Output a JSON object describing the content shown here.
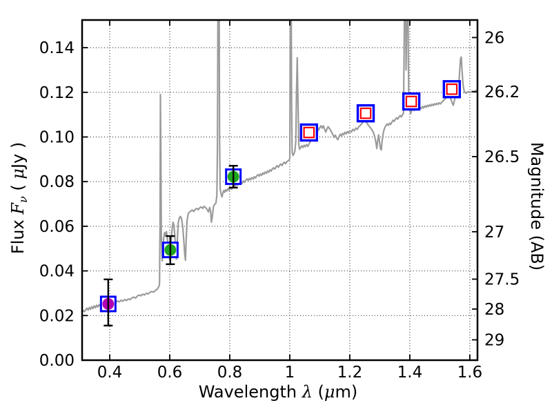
{
  "chart_data": {
    "type": "line+scatter",
    "title": "",
    "xlabel_parts": [
      {
        "t": "Wavelength  ",
        "f": "sans"
      },
      {
        "t": "λ",
        "f": "math"
      },
      {
        "t": " (",
        "f": "sans"
      },
      {
        "t": "μ",
        "f": "math"
      },
      {
        "t": "m)",
        "f": "sans"
      }
    ],
    "ylabel_parts": [
      {
        "t": "Flux  ",
        "f": "sans"
      },
      {
        "t": "F",
        "f": "math"
      },
      {
        "t": "ν",
        "f": "mathsub"
      },
      {
        "t": "  ( ",
        "f": "sans"
      },
      {
        "t": "μ",
        "f": "math"
      },
      {
        "t": "Jy )",
        "f": "sans"
      }
    ],
    "ylabel_right": "Magnitude (AB)",
    "xlim": [
      0.308,
      1.6255
    ],
    "ylim": [
      0,
      0.1524
    ],
    "x_ticks": [
      [
        0.4,
        "0.4"
      ],
      [
        0.6,
        "0.6"
      ],
      [
        0.8,
        "0.8"
      ],
      [
        1.0,
        "1"
      ],
      [
        1.2,
        "1.2"
      ],
      [
        1.4,
        "1.4"
      ],
      [
        1.6,
        "1.6"
      ]
    ],
    "y_ticks": [
      [
        0.0,
        "0.00"
      ],
      [
        0.02,
        "0.02"
      ],
      [
        0.04,
        "0.04"
      ],
      [
        0.06,
        "0.06"
      ],
      [
        0.08,
        "0.08"
      ],
      [
        0.1,
        "0.10"
      ],
      [
        0.12,
        "0.12"
      ],
      [
        0.14,
        "0.14"
      ]
    ],
    "right_ticks": [
      [
        26,
        "26"
      ],
      [
        26.2,
        "26.2"
      ],
      [
        26.5,
        "26.5"
      ],
      [
        27,
        "27"
      ],
      [
        27.5,
        "27.5"
      ],
      [
        28,
        "28"
      ],
      [
        29,
        "29"
      ]
    ],
    "ab_zeropoint": 23.9,
    "grid": true,
    "colors": {
      "spectrum": "#9b9b9b",
      "square_edge": "#0000ff",
      "inner_square_edge": "#ff0000",
      "point_magenta": "#b400b4",
      "point_green": "#1ea41e",
      "error_bar": "#000000",
      "frame": "#000000"
    },
    "photometry": [
      {
        "x": 0.395,
        "y": 0.0252,
        "err_plus": 0.011,
        "err_minus": 0.0097,
        "marker": "filled-circle-in-square",
        "fill": "#b400b4"
      },
      {
        "x": 0.602,
        "y": 0.0494,
        "err_plus": 0.0062,
        "err_minus": 0.0064,
        "marker": "filled-circle-in-square",
        "fill": "#1ea41e"
      },
      {
        "x": 0.812,
        "y": 0.0822,
        "err_plus": 0.0049,
        "err_minus": 0.0049,
        "marker": "filled-circle-in-square",
        "fill": "#1ea41e"
      },
      {
        "x": 1.064,
        "y": 0.102,
        "err_plus": 0.0025,
        "err_minus": 0.0025,
        "marker": "open-double-square"
      },
      {
        "x": 1.253,
        "y": 0.1106,
        "err_plus": 0.0025,
        "err_minus": 0.0025,
        "marker": "open-double-square"
      },
      {
        "x": 1.405,
        "y": 0.1159,
        "err_plus": 0.0025,
        "err_minus": 0.0025,
        "marker": "open-double-square"
      },
      {
        "x": 1.54,
        "y": 0.1214,
        "err_plus": 0.0025,
        "err_minus": 0.0025,
        "marker": "open-double-square"
      }
    ],
    "spectrum": [
      [
        0.308,
        0.0215
      ],
      [
        0.312,
        0.0222
      ],
      [
        0.316,
        0.0218
      ],
      [
        0.32,
        0.0226
      ],
      [
        0.324,
        0.0233
      ],
      [
        0.328,
        0.0224
      ],
      [
        0.332,
        0.0236
      ],
      [
        0.336,
        0.0228
      ],
      [
        0.34,
        0.024
      ],
      [
        0.344,
        0.0231
      ],
      [
        0.348,
        0.0243
      ],
      [
        0.352,
        0.0235
      ],
      [
        0.356,
        0.0246
      ],
      [
        0.36,
        0.0238
      ],
      [
        0.364,
        0.0249
      ],
      [
        0.368,
        0.0242
      ],
      [
        0.372,
        0.0252
      ],
      [
        0.376,
        0.0245
      ],
      [
        0.38,
        0.0254
      ],
      [
        0.384,
        0.0248
      ],
      [
        0.388,
        0.0256
      ],
      [
        0.392,
        0.025
      ],
      [
        0.396,
        0.0258
      ],
      [
        0.4,
        0.0252
      ],
      [
        0.405,
        0.026
      ],
      [
        0.41,
        0.0255
      ],
      [
        0.415,
        0.0263
      ],
      [
        0.42,
        0.0258
      ],
      [
        0.426,
        0.0266
      ],
      [
        0.432,
        0.0261
      ],
      [
        0.438,
        0.0269
      ],
      [
        0.444,
        0.0264
      ],
      [
        0.45,
        0.0272
      ],
      [
        0.456,
        0.0267
      ],
      [
        0.462,
        0.0275
      ],
      [
        0.468,
        0.0271
      ],
      [
        0.474,
        0.0279
      ],
      [
        0.48,
        0.0283
      ],
      [
        0.486,
        0.0278
      ],
      [
        0.492,
        0.0287
      ],
      [
        0.498,
        0.0292
      ],
      [
        0.504,
        0.0288
      ],
      [
        0.51,
        0.0296
      ],
      [
        0.516,
        0.0292
      ],
      [
        0.522,
        0.03
      ],
      [
        0.528,
        0.0297
      ],
      [
        0.534,
        0.0304
      ],
      [
        0.54,
        0.0308
      ],
      [
        0.546,
        0.0305
      ],
      [
        0.552,
        0.0312
      ],
      [
        0.558,
        0.0318
      ],
      [
        0.562,
        0.0326
      ],
      [
        0.5645,
        0.0332
      ],
      [
        0.566,
        0.0345
      ],
      [
        0.5675,
        0.06
      ],
      [
        0.569,
        0.119
      ],
      [
        0.5705,
        0.09
      ],
      [
        0.572,
        0.056
      ],
      [
        0.5735,
        0.048
      ],
      [
        0.575,
        0.0445
      ],
      [
        0.577,
        0.05
      ],
      [
        0.58,
        0.0548
      ],
      [
        0.583,
        0.0572
      ],
      [
        0.586,
        0.0556
      ],
      [
        0.589,
        0.0576
      ],
      [
        0.592,
        0.0548
      ],
      [
        0.595,
        0.0505
      ],
      [
        0.5975,
        0.0465
      ],
      [
        0.6,
        0.0448
      ],
      [
        0.6025,
        0.048
      ],
      [
        0.605,
        0.054
      ],
      [
        0.608,
        0.0588
      ],
      [
        0.611,
        0.0618
      ],
      [
        0.614,
        0.0605
      ],
      [
        0.617,
        0.0558
      ],
      [
        0.6195,
        0.0482
      ],
      [
        0.622,
        0.0452
      ],
      [
        0.625,
        0.0528
      ],
      [
        0.628,
        0.0614
      ],
      [
        0.632,
        0.0638
      ],
      [
        0.636,
        0.0644
      ],
      [
        0.64,
        0.063
      ],
      [
        0.644,
        0.0588
      ],
      [
        0.647,
        0.0535
      ],
      [
        0.65,
        0.0475
      ],
      [
        0.6525,
        0.0448
      ],
      [
        0.655,
        0.0545
      ],
      [
        0.658,
        0.0628
      ],
      [
        0.662,
        0.0658
      ],
      [
        0.666,
        0.0664
      ],
      [
        0.67,
        0.0668
      ],
      [
        0.675,
        0.0673
      ],
      [
        0.68,
        0.0666
      ],
      [
        0.685,
        0.0676
      ],
      [
        0.69,
        0.068
      ],
      [
        0.695,
        0.0674
      ],
      [
        0.7,
        0.0683
      ],
      [
        0.705,
        0.0687
      ],
      [
        0.71,
        0.068
      ],
      [
        0.715,
        0.0689
      ],
      [
        0.72,
        0.0683
      ],
      [
        0.725,
        0.0674
      ],
      [
        0.729,
        0.0664
      ],
      [
        0.733,
        0.0684
      ],
      [
        0.736,
        0.0671
      ],
      [
        0.739,
        0.0618
      ],
      [
        0.742,
        0.0645
      ],
      [
        0.746,
        0.069
      ],
      [
        0.75,
        0.0698
      ],
      [
        0.754,
        0.0704
      ],
      [
        0.757,
        0.074
      ],
      [
        0.759,
        0.095
      ],
      [
        0.761,
        0.17
      ],
      [
        0.7645,
        0.17
      ],
      [
        0.766,
        0.1
      ],
      [
        0.768,
        0.0768
      ],
      [
        0.771,
        0.0745
      ],
      [
        0.774,
        0.0731
      ],
      [
        0.777,
        0.0749
      ],
      [
        0.78,
        0.076
      ],
      [
        0.783,
        0.0752
      ],
      [
        0.786,
        0.0764
      ],
      [
        0.79,
        0.0757
      ],
      [
        0.794,
        0.0769
      ],
      [
        0.798,
        0.0761
      ],
      [
        0.802,
        0.0772
      ],
      [
        0.806,
        0.0766
      ],
      [
        0.81,
        0.0778
      ],
      [
        0.814,
        0.0786
      ],
      [
        0.818,
        0.0779
      ],
      [
        0.822,
        0.079
      ],
      [
        0.826,
        0.0784
      ],
      [
        0.83,
        0.0795
      ],
      [
        0.834,
        0.0789
      ],
      [
        0.838,
        0.0799
      ],
      [
        0.842,
        0.0793
      ],
      [
        0.846,
        0.0803
      ],
      [
        0.85,
        0.0797
      ],
      [
        0.854,
        0.0807
      ],
      [
        0.858,
        0.0812
      ],
      [
        0.862,
        0.0805
      ],
      [
        0.866,
        0.0815
      ],
      [
        0.87,
        0.0809
      ],
      [
        0.874,
        0.0818
      ],
      [
        0.878,
        0.0812
      ],
      [
        0.882,
        0.0822
      ],
      [
        0.886,
        0.0816
      ],
      [
        0.89,
        0.0826
      ],
      [
        0.894,
        0.0831
      ],
      [
        0.898,
        0.0824
      ],
      [
        0.902,
        0.0834
      ],
      [
        0.906,
        0.0828
      ],
      [
        0.91,
        0.0839
      ],
      [
        0.914,
        0.0833
      ],
      [
        0.918,
        0.0843
      ],
      [
        0.922,
        0.0837
      ],
      [
        0.926,
        0.0848
      ],
      [
        0.93,
        0.0842
      ],
      [
        0.934,
        0.0853
      ],
      [
        0.938,
        0.0847
      ],
      [
        0.942,
        0.0857
      ],
      [
        0.946,
        0.0862
      ],
      [
        0.95,
        0.0856
      ],
      [
        0.954,
        0.0866
      ],
      [
        0.958,
        0.0871
      ],
      [
        0.962,
        0.0864
      ],
      [
        0.966,
        0.0874
      ],
      [
        0.97,
        0.0879
      ],
      [
        0.974,
        0.0872
      ],
      [
        0.978,
        0.0882
      ],
      [
        0.982,
        0.0887
      ],
      [
        0.986,
        0.088
      ],
      [
        0.99,
        0.0889
      ],
      [
        0.994,
        0.0893
      ],
      [
        0.998,
        0.0897
      ],
      [
        1.0,
        0.0905
      ],
      [
        1.0015,
        0.14
      ],
      [
        1.003,
        0.17
      ],
      [
        1.0045,
        0.17
      ],
      [
        1.006,
        0.115
      ],
      [
        1.008,
        0.093
      ],
      [
        1.011,
        0.0917
      ],
      [
        1.014,
        0.0925
      ],
      [
        1.017,
        0.0938
      ],
      [
        1.02,
        0.098
      ],
      [
        1.0225,
        0.12
      ],
      [
        1.025,
        0.1355
      ],
      [
        1.0275,
        0.115
      ],
      [
        1.03,
        0.0965
      ],
      [
        1.033,
        0.0945
      ],
      [
        1.036,
        0.0952
      ],
      [
        1.04,
        0.096
      ],
      [
        1.044,
        0.0953
      ],
      [
        1.048,
        0.0963
      ],
      [
        1.052,
        0.0956
      ],
      [
        1.056,
        0.0966
      ],
      [
        1.06,
        0.0958
      ],
      [
        1.064,
        0.0968
      ],
      [
        1.068,
        0.0978
      ],
      [
        1.072,
        0.0995
      ],
      [
        1.076,
        0.1015
      ],
      [
        1.08,
        0.1035
      ],
      [
        1.084,
        0.105
      ],
      [
        1.088,
        0.1056
      ],
      [
        1.092,
        0.1044
      ],
      [
        1.096,
        0.103
      ],
      [
        1.1,
        0.1042
      ],
      [
        1.104,
        0.105
      ],
      [
        1.108,
        0.104
      ],
      [
        1.112,
        0.105
      ],
      [
        1.116,
        0.1035
      ],
      [
        1.12,
        0.1022
      ],
      [
        1.124,
        0.1036
      ],
      [
        1.128,
        0.1046
      ],
      [
        1.132,
        0.1038
      ],
      [
        1.136,
        0.103
      ],
      [
        1.14,
        0.102
      ],
      [
        1.144,
        0.101
      ],
      [
        1.148,
        0.0998
      ],
      [
        1.152,
        0.1008
      ],
      [
        1.156,
        0.0996
      ],
      [
        1.16,
        0.0988
      ],
      [
        1.164,
        0.1
      ],
      [
        1.168,
        0.1012
      ],
      [
        1.172,
        0.1005
      ],
      [
        1.176,
        0.1016
      ],
      [
        1.18,
        0.101
      ],
      [
        1.184,
        0.1021
      ],
      [
        1.188,
        0.1014
      ],
      [
        1.192,
        0.1024
      ],
      [
        1.196,
        0.1018
      ],
      [
        1.2,
        0.1028
      ],
      [
        1.205,
        0.1022
      ],
      [
        1.21,
        0.1034
      ],
      [
        1.215,
        0.1028
      ],
      [
        1.22,
        0.104
      ],
      [
        1.225,
        0.1034
      ],
      [
        1.23,
        0.1046
      ],
      [
        1.235,
        0.1052
      ],
      [
        1.24,
        0.106
      ],
      [
        1.245,
        0.1068
      ],
      [
        1.25,
        0.1075
      ],
      [
        1.255,
        0.1066
      ],
      [
        1.26,
        0.1056
      ],
      [
        1.266,
        0.1046
      ],
      [
        1.272,
        0.1036
      ],
      [
        1.278,
        0.1022
      ],
      [
        1.283,
        0.1002
      ],
      [
        1.287,
        0.0975
      ],
      [
        1.29,
        0.0948
      ],
      [
        1.293,
        0.0985
      ],
      [
        1.296,
        0.101
      ],
      [
        1.299,
        0.098
      ],
      [
        1.302,
        0.0948
      ],
      [
        1.305,
        0.0942
      ],
      [
        1.308,
        0.0985
      ],
      [
        1.312,
        0.1022
      ],
      [
        1.316,
        0.104
      ],
      [
        1.32,
        0.105
      ],
      [
        1.324,
        0.1058
      ],
      [
        1.328,
        0.1052
      ],
      [
        1.332,
        0.1062
      ],
      [
        1.336,
        0.1056
      ],
      [
        1.34,
        0.1066
      ],
      [
        1.344,
        0.1075
      ],
      [
        1.348,
        0.107
      ],
      [
        1.352,
        0.108
      ],
      [
        1.356,
        0.1086
      ],
      [
        1.36,
        0.108
      ],
      [
        1.364,
        0.109
      ],
      [
        1.368,
        0.1096
      ],
      [
        1.372,
        0.109
      ],
      [
        1.376,
        0.11
      ],
      [
        1.379,
        0.1108
      ],
      [
        1.381,
        0.14
      ],
      [
        1.383,
        0.17
      ],
      [
        1.386,
        0.17
      ],
      [
        1.3875,
        0.13
      ],
      [
        1.389,
        0.142
      ],
      [
        1.391,
        0.17
      ],
      [
        1.3935,
        0.17
      ],
      [
        1.395,
        0.135
      ],
      [
        1.397,
        0.113
      ],
      [
        1.4,
        0.112
      ],
      [
        1.403,
        0.1105
      ],
      [
        1.406,
        0.1118
      ],
      [
        1.41,
        0.1126
      ],
      [
        1.414,
        0.1118
      ],
      [
        1.418,
        0.1128
      ],
      [
        1.422,
        0.1121
      ],
      [
        1.426,
        0.113
      ],
      [
        1.43,
        0.1124
      ],
      [
        1.434,
        0.1133
      ],
      [
        1.438,
        0.1127
      ],
      [
        1.442,
        0.1136
      ],
      [
        1.446,
        0.113
      ],
      [
        1.45,
        0.1139
      ],
      [
        1.454,
        0.1133
      ],
      [
        1.458,
        0.1142
      ],
      [
        1.462,
        0.1136
      ],
      [
        1.466,
        0.1144
      ],
      [
        1.47,
        0.1139
      ],
      [
        1.474,
        0.1147
      ],
      [
        1.478,
        0.1141
      ],
      [
        1.482,
        0.1149
      ],
      [
        1.486,
        0.1144
      ],
      [
        1.49,
        0.1151
      ],
      [
        1.494,
        0.1146
      ],
      [
        1.498,
        0.1153
      ],
      [
        1.502,
        0.1148
      ],
      [
        1.506,
        0.1155
      ],
      [
        1.51,
        0.116
      ],
      [
        1.515,
        0.1167
      ],
      [
        1.52,
        0.1174
      ],
      [
        1.525,
        0.118
      ],
      [
        1.53,
        0.1186
      ],
      [
        1.534,
        0.1178
      ],
      [
        1.538,
        0.1166
      ],
      [
        1.542,
        0.115
      ],
      [
        1.545,
        0.1142
      ],
      [
        1.548,
        0.116
      ],
      [
        1.551,
        0.1176
      ],
      [
        1.554,
        0.1188
      ],
      [
        1.557,
        0.1196
      ],
      [
        1.56,
        0.1206
      ],
      [
        1.563,
        0.123
      ],
      [
        1.566,
        0.129
      ],
      [
        1.569,
        0.135
      ],
      [
        1.5715,
        0.1358
      ],
      [
        1.574,
        0.13
      ],
      [
        1.577,
        0.124
      ],
      [
        1.58,
        0.1212
      ],
      [
        1.583,
        0.12
      ],
      [
        1.587,
        0.1196
      ],
      [
        1.591,
        0.12
      ],
      [
        1.596,
        0.1203
      ],
      [
        1.602,
        0.12
      ],
      [
        1.608,
        0.1205
      ],
      [
        1.614,
        0.1203
      ],
      [
        1.62,
        0.1208
      ],
      [
        1.6255,
        0.121
      ]
    ]
  }
}
